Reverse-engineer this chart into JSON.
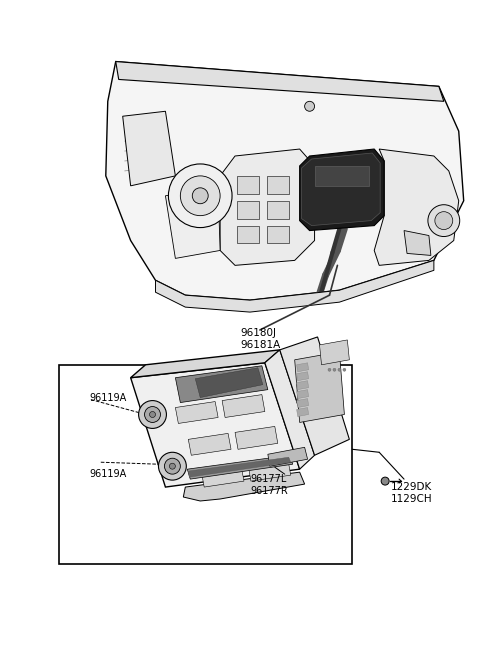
{
  "background_color": "#ffffff",
  "line_color": "#000000",
  "fig_width": 4.8,
  "fig_height": 6.55,
  "dpi": 100,
  "font_size": 7.0,
  "font_size_small": 6.5,
  "tilt_deg": -28,
  "label_96180J": "96180J",
  "label_96181A": "96181A",
  "label_96119A": "96119A",
  "label_96177L": "96177L",
  "label_96177R": "96177R",
  "label_1229DK": "1229DK",
  "label_1129CH": "1129CH"
}
